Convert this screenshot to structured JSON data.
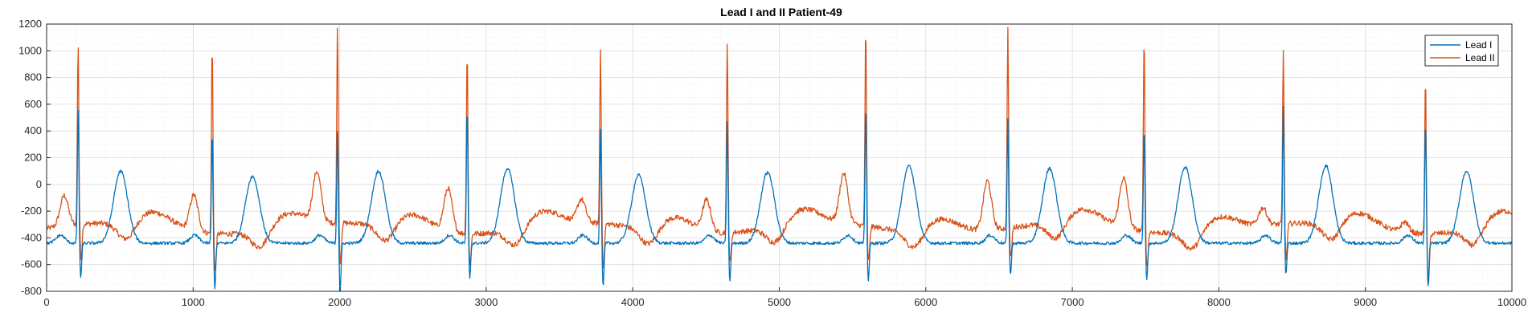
{
  "chart_data": {
    "type": "line",
    "title": "Lead I and II Patient-49",
    "xlabel": "",
    "ylabel": "",
    "xlim": [
      0,
      10000
    ],
    "ylim": [
      -800,
      1200
    ],
    "x_ticks": [
      0,
      1000,
      2000,
      3000,
      4000,
      5000,
      6000,
      7000,
      8000,
      9000,
      10000
    ],
    "y_ticks": [
      -800,
      -600,
      -400,
      -200,
      0,
      200,
      400,
      600,
      800,
      1000,
      1200
    ],
    "grid": true,
    "minor_grid": true,
    "legend_position": "top-right",
    "beats_x": [
      215,
      1130,
      1985,
      2870,
      3780,
      4645,
      5590,
      6560,
      7490,
      8440,
      9410
    ],
    "series": [
      {
        "name": "Lead I",
        "color": "#0072BD",
        "r_peaks": [
          580,
          400,
          420,
          580,
          420,
          480,
          600,
          490,
          440,
          580,
          480
        ],
        "s_troughs": [
          -700,
          -780,
          -800,
          -700,
          -770,
          -730,
          -720,
          -680,
          -720,
          -670,
          -760
        ],
        "t_waves": [
          {
            "x": 505,
            "y": 100
          },
          {
            "x": 1405,
            "y": 60
          },
          {
            "x": 2265,
            "y": 100
          },
          {
            "x": 3145,
            "y": 120
          },
          {
            "x": 4040,
            "y": 70
          },
          {
            "x": 4920,
            "y": 90
          },
          {
            "x": 5885,
            "y": 140
          },
          {
            "x": 6845,
            "y": 120
          },
          {
            "x": 7770,
            "y": 130
          },
          {
            "x": 8730,
            "y": 140
          },
          {
            "x": 9690,
            "y": 100
          }
        ],
        "baseline": -440
      },
      {
        "name": "Lead II",
        "color": "#D95319",
        "r_peaks": [
          1030,
          1090,
          1160,
          1050,
          980,
          1100,
          1160,
          1170,
          1140,
          980,
          840
        ],
        "s_troughs": [
          -580,
          -620,
          -620,
          -560,
          -650,
          -560,
          -600,
          -560,
          -600,
          -590,
          -720
        ],
        "p_waves": [
          {
            "x": 120,
            "y": -100
          },
          {
            "x": 1005,
            "y": -60
          },
          {
            "x": 1845,
            "y": 40
          },
          {
            "x": 2740,
            "y": -10
          },
          {
            "x": 3650,
            "y": -160
          },
          {
            "x": 4505,
            "y": -100
          },
          {
            "x": 5440,
            "y": 40
          },
          {
            "x": 6420,
            "y": 40
          },
          {
            "x": 7350,
            "y": 40
          },
          {
            "x": 8300,
            "y": -200
          },
          {
            "x": 9270,
            "y": -250
          }
        ],
        "baseline": -330
      }
    ]
  }
}
